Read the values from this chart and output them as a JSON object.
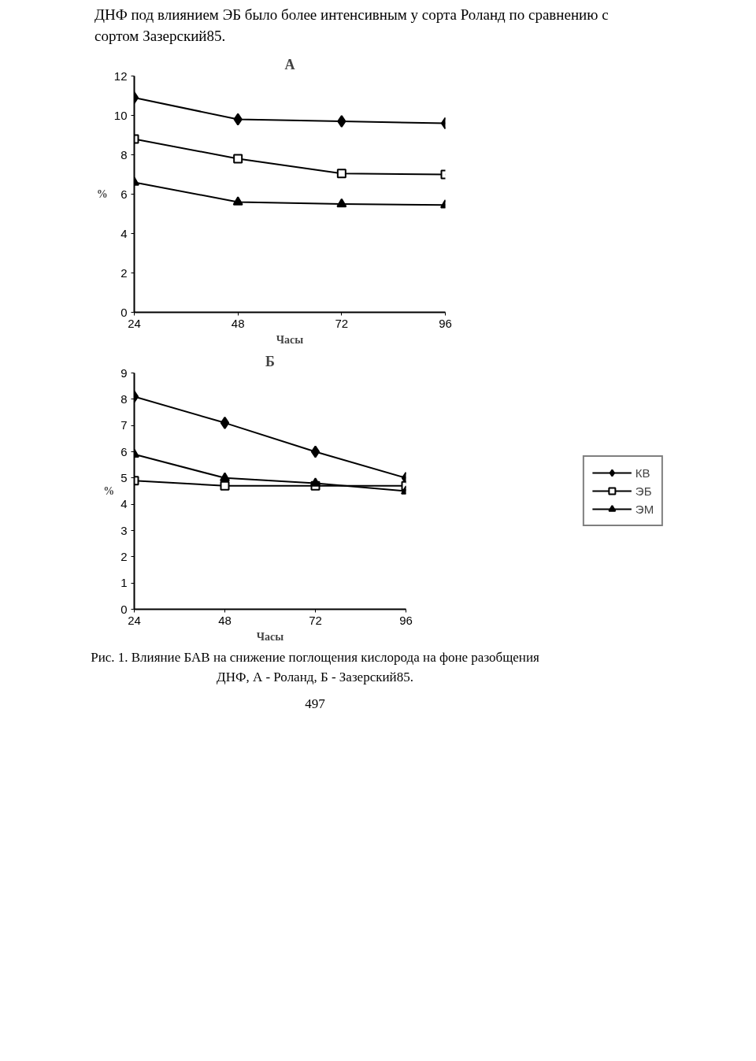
{
  "chart_data": [
    {
      "type": "line",
      "title": "А",
      "xlabel": "Часы",
      "ylabel": "%",
      "x": [
        24,
        48,
        72,
        96
      ],
      "xlim": [
        24,
        96
      ],
      "xticks": [
        24,
        48,
        72,
        96
      ],
      "ylim": [
        0,
        12
      ],
      "yticks": [
        0,
        2,
        4,
        6,
        8,
        10,
        12
      ],
      "grid": false,
      "legend": false,
      "annotations": [
        "ДНФ под влиянием ЭБ было более интенсивным у сорта Роланд по сравнению с сортом Зазерский85."
      ],
      "series": [
        {
          "color": "#000000",
          "marker": "diamond",
          "values": [
            10.9,
            9.8,
            9.7,
            9.6
          ]
        },
        {
          "color": "#000000",
          "marker": "square",
          "values": [
            8.8,
            7.8,
            7.05,
            7.0
          ]
        },
        {
          "color": "#000000",
          "marker": "triangle",
          "values": [
            6.6,
            5.6,
            5.5,
            5.45
          ]
        }
      ]
    },
    {
      "type": "line",
      "title": "Б",
      "xlabel": "Часы",
      "ylabel": "%",
      "x": [
        24,
        48,
        72,
        96
      ],
      "xlim": [
        24,
        96
      ],
      "xticks": [
        24,
        48,
        72,
        96
      ],
      "ylim": [
        0,
        9
      ],
      "yticks": [
        0,
        1,
        2,
        3,
        4,
        5,
        6,
        7,
        8,
        9
      ],
      "grid": false,
      "legend": "right",
      "annotations": [
        "Рис. 1. Влияние БАВ на снижение поглощения кислорода на фоне разобщения ДНФ, А - Роланд, Б - Зазерский85.",
        "497"
      ],
      "series": [
        {
          "name": "КВ",
          "color": "#000000",
          "marker": "diamond",
          "values": [
            8.1,
            7.1,
            6.0,
            5.0
          ]
        },
        {
          "name": "ЭБ",
          "color": "#000000",
          "marker": "square",
          "values": [
            4.9,
            4.7,
            4.7,
            4.7
          ]
        },
        {
          "name": "ЭМ",
          "color": "#000000",
          "marker": "triangle",
          "values": [
            5.9,
            5.0,
            4.8,
            4.5
          ]
        }
      ]
    }
  ]
}
